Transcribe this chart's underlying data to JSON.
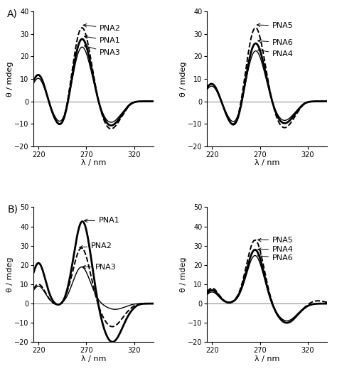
{
  "figure_size": [
    4.74,
    5.29
  ],
  "dpi": 100,
  "background": "#ffffff",
  "xlim": [
    215,
    340
  ],
  "xticks": [
    220,
    270,
    320
  ],
  "xlabel": "λ / nm",
  "ylabel": "θ / mdeg",
  "panel_A_ylim": [
    -20,
    40
  ],
  "panel_A_yticks": [
    -20,
    -10,
    0,
    10,
    20,
    30,
    40
  ],
  "panel_B_ylim": [
    -20,
    50
  ],
  "panel_B_yticks": [
    -20,
    -10,
    0,
    10,
    20,
    30,
    40,
    50
  ],
  "lw_thick": 2.0,
  "lw_thin": 1.0,
  "lw_dashed": 1.4,
  "fontsize_label": 8,
  "fontsize_tick": 7,
  "fontsize_annot": 8
}
